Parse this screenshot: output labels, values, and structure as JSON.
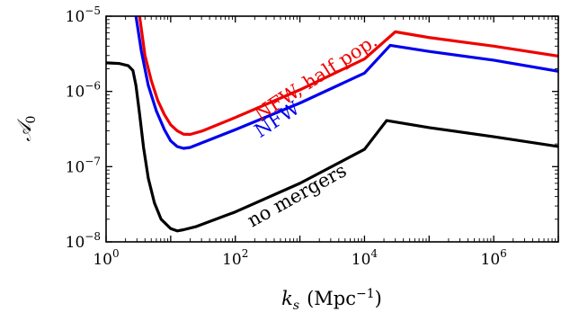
{
  "chart_data": {
    "type": "line",
    "xlabel": {
      "main": "k",
      "sub": "s",
      "unit": "(Mpc",
      "unit_exp": "−1",
      "unit_close": ")"
    },
    "ylabel": {
      "main": "𝒜",
      "sub": "0"
    },
    "x_scale": "log",
    "y_scale": "log",
    "xlim": [
      1,
      10000000
    ],
    "ylim": [
      1e-08,
      1e-05
    ],
    "x_ticks": [
      {
        "value": 1,
        "base": "10",
        "exp": "0"
      },
      {
        "value": 100,
        "base": "10",
        "exp": "2"
      },
      {
        "value": 10000,
        "base": "10",
        "exp": "4"
      },
      {
        "value": 1000000,
        "base": "10",
        "exp": "6"
      }
    ],
    "y_ticks": [
      {
        "value": 1e-08,
        "base": "10",
        "exp": "−8"
      },
      {
        "value": 1e-07,
        "base": "10",
        "exp": "−7"
      },
      {
        "value": 1e-06,
        "base": "10",
        "exp": "−6"
      },
      {
        "value": 1e-05,
        "base": "10",
        "exp": "−5"
      }
    ],
    "grid": false,
    "series": [
      {
        "name": "NFW, half pop.",
        "color": "#ee0000",
        "points": [
          [
            3.3,
            1e-05
          ],
          [
            4,
            3e-06
          ],
          [
            5,
            1.4e-06
          ],
          [
            6.3,
            7.6e-07
          ],
          [
            8,
            4.9e-07
          ],
          [
            10,
            3.6e-07
          ],
          [
            12.6,
            3e-07
          ],
          [
            15.8,
            2.7e-07
          ],
          [
            20,
            2.68e-07
          ],
          [
            31.6,
            3e-07
          ],
          [
            100,
            4.5e-07
          ],
          [
            1000,
            1.05e-06
          ],
          [
            10000,
            2.7e-06
          ],
          [
            30000,
            6.2e-06
          ],
          [
            100000,
            5.2e-06
          ],
          [
            1000000,
            4e-06
          ],
          [
            10000000,
            2.95e-06
          ]
        ]
      },
      {
        "name": "NFW",
        "color": "#0000ee",
        "points": [
          [
            2.9,
            1e-05
          ],
          [
            3.5,
            3.5e-06
          ],
          [
            4.5,
            1.2e-06
          ],
          [
            6,
            5.5e-07
          ],
          [
            8,
            3.1e-07
          ],
          [
            10,
            2.2e-07
          ],
          [
            12.6,
            1.85e-07
          ],
          [
            15.8,
            1.75e-07
          ],
          [
            20,
            1.8e-07
          ],
          [
            31.6,
            2.1e-07
          ],
          [
            100,
            3.1e-07
          ],
          [
            1000,
            7e-07
          ],
          [
            10000,
            1.75e-06
          ],
          [
            25000,
            4.1e-06
          ],
          [
            100000,
            3.4e-06
          ],
          [
            1000000,
            2.6e-06
          ],
          [
            10000000,
            1.85e-06
          ]
        ]
      },
      {
        "name": "no mergers",
        "color": "#000000",
        "points": [
          [
            1,
            2.4e-06
          ],
          [
            1.6,
            2.35e-06
          ],
          [
            2.2,
            2.2e-06
          ],
          [
            2.6,
            1.9e-06
          ],
          [
            2.9,
            1.2e-06
          ],
          [
            3.3,
            5e-07
          ],
          [
            3.8,
            1.8e-07
          ],
          [
            4.5,
            7e-08
          ],
          [
            5.6,
            3.3e-08
          ],
          [
            7.1,
            2e-08
          ],
          [
            10,
            1.5e-08
          ],
          [
            12.6,
            1.4e-08
          ],
          [
            15.8,
            1.45e-08
          ],
          [
            25,
            1.6e-08
          ],
          [
            100,
            2.5e-08
          ],
          [
            1000,
            6e-08
          ],
          [
            10000,
            1.7e-07
          ],
          [
            22000,
            4.1e-07
          ],
          [
            100000,
            3.3e-07
          ],
          [
            1000000,
            2.5e-07
          ],
          [
            10000000,
            1.85e-07
          ]
        ]
      }
    ],
    "annotations": [
      {
        "text": "NFW, half pop.",
        "color": "#ee0000",
        "x": 2000,
        "y": 1.3e-06,
        "rotation": -33
      },
      {
        "text": "NFW",
        "color": "#0000ee",
        "x": 500,
        "y": 3.6e-07,
        "rotation": -33
      },
      {
        "text": "no mergers",
        "color": "#000000",
        "x": 1000,
        "y": 3.5e-08,
        "rotation": -29
      }
    ]
  }
}
